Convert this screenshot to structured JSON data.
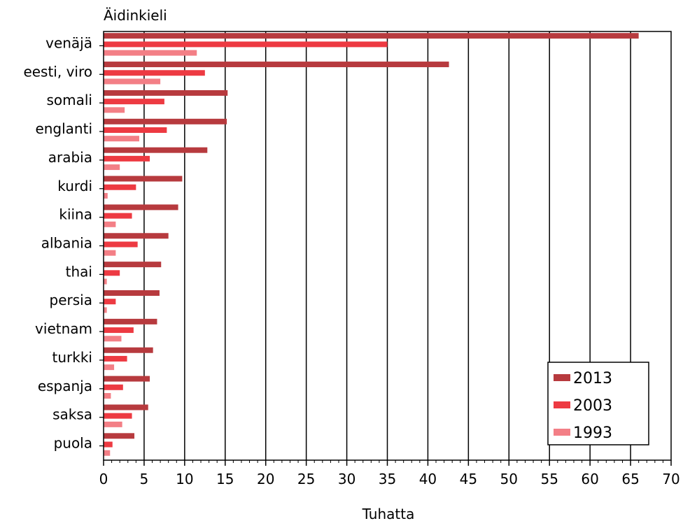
{
  "chart_data": {
    "type": "bar",
    "orientation": "horizontal",
    "title": "",
    "ylabel": "Äidinkieli",
    "xlabel": "Tuhatta",
    "xlim": [
      0,
      70
    ],
    "xticks": [
      "0",
      "5",
      "10",
      "15",
      "20",
      "25",
      "30",
      "35",
      "40",
      "45",
      "50",
      "55",
      "60",
      "65",
      "70"
    ],
    "grid": "vertical",
    "legend_position": "bottom-right",
    "categories": [
      "venäjä",
      "eesti, viro",
      "somali",
      "englanti",
      "arabia",
      "kurdi",
      "kiina",
      "albania",
      "thai",
      "persia",
      "vietnam",
      "turkki",
      "espanja",
      "saksa",
      "puola"
    ],
    "series": [
      {
        "name": "2013",
        "color": "#b73a3e",
        "values": [
          66.0,
          42.6,
          15.3,
          15.2,
          12.8,
          9.7,
          9.2,
          8.0,
          7.1,
          6.9,
          6.6,
          6.1,
          5.7,
          5.5,
          3.8
        ]
      },
      {
        "name": "2003",
        "color": "#ed3a42",
        "values": [
          35.0,
          12.5,
          7.5,
          7.8,
          5.7,
          4.0,
          3.5,
          4.2,
          2.0,
          1.5,
          3.7,
          2.9,
          2.4,
          3.5,
          1.1
        ]
      },
      {
        "name": "1993",
        "color": "#f37f86",
        "values": [
          11.5,
          7.0,
          2.6,
          4.4,
          2.0,
          0.5,
          1.5,
          1.5,
          0.4,
          0.4,
          2.2,
          1.3,
          0.9,
          2.3,
          0.8
        ]
      }
    ]
  }
}
